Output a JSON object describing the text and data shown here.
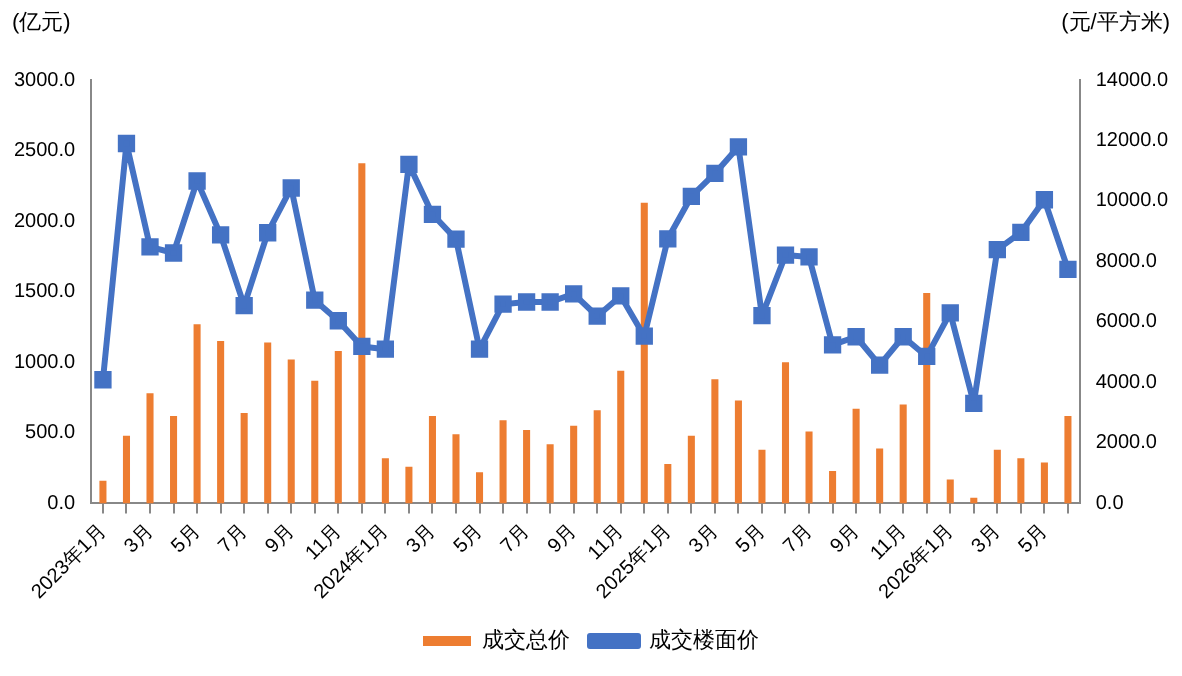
{
  "chart_data": {
    "type": "bar",
    "ylabel": "(亿元)",
    "y2label": "(元/平方米)",
    "categories": [
      "2023年1月",
      null,
      "3月",
      null,
      "5月",
      null,
      "7月",
      null,
      "9月",
      null,
      "11月",
      null,
      "2024年1月",
      null,
      "3月",
      null,
      "5月",
      null,
      "7月",
      null,
      "9月",
      null,
      "11月",
      null,
      "2025年1月",
      null,
      "3月",
      null,
      "5月",
      null,
      "7月",
      null,
      "9月",
      null,
      "11月",
      null,
      "2026年1月",
      null,
      "3月",
      null,
      "5月",
      null
    ],
    "series": [
      {
        "name": "成交总价",
        "color": "#ed7d31",
        "values": [
          160,
          480,
          780,
          620,
          1270,
          1150,
          640,
          1140,
          1020,
          870,
          1080,
          2410,
          320,
          260,
          620,
          490,
          220,
          590,
          520,
          420,
          550,
          660,
          940,
          2130,
          280,
          480,
          880,
          730,
          380,
          1000,
          510,
          230,
          670,
          390,
          700,
          1490,
          170,
          40,
          380,
          320,
          290,
          620
        ]
      },
      {
        "name": "成交楼面价",
        "type": "line",
        "axis": "y2",
        "color": "#4472c4",
        "values": [
          4090,
          11900,
          8480,
          8280,
          10660,
          8880,
          6540,
          8950,
          10430,
          6720,
          6040,
          5190,
          5100,
          11210,
          9560,
          8740,
          5100,
          6590,
          6660,
          6660,
          6930,
          6190,
          6860,
          5530,
          8750,
          10150,
          10910,
          11790,
          6210,
          8210,
          8150,
          5240,
          5510,
          4570,
          5510,
          4860,
          6300,
          3310,
          8390,
          8960,
          10040,
          7740
        ]
      }
    ],
    "ylim": [
      0,
      3000
    ],
    "yticks": [
      {
        "value": 0,
        "label": "0.0"
      },
      {
        "value": 500,
        "label": "500.0"
      },
      {
        "value": 1000,
        "label": "1000.0"
      },
      {
        "value": 1500,
        "label": "1500.0"
      },
      {
        "value": 2000,
        "label": "2000.0"
      },
      {
        "value": 2500,
        "label": "2500.0"
      },
      {
        "value": 3000,
        "label": "3000.0"
      }
    ],
    "y2lim": [
      0,
      14000
    ],
    "y2ticks": [
      {
        "value": 0,
        "label": "0.0"
      },
      {
        "value": 2000,
        "label": "2000.0"
      },
      {
        "value": 4000,
        "label": "4000.0"
      },
      {
        "value": 6000,
        "label": "6000.0"
      },
      {
        "value": 8000,
        "label": "8000.0"
      },
      {
        "value": 10000,
        "label": "10000.0"
      },
      {
        "value": 12000,
        "label": "12000.0"
      },
      {
        "value": 14000,
        "label": "14000.0"
      }
    ],
    "grid": false,
    "legend": "bottom",
    "marker": "square"
  }
}
